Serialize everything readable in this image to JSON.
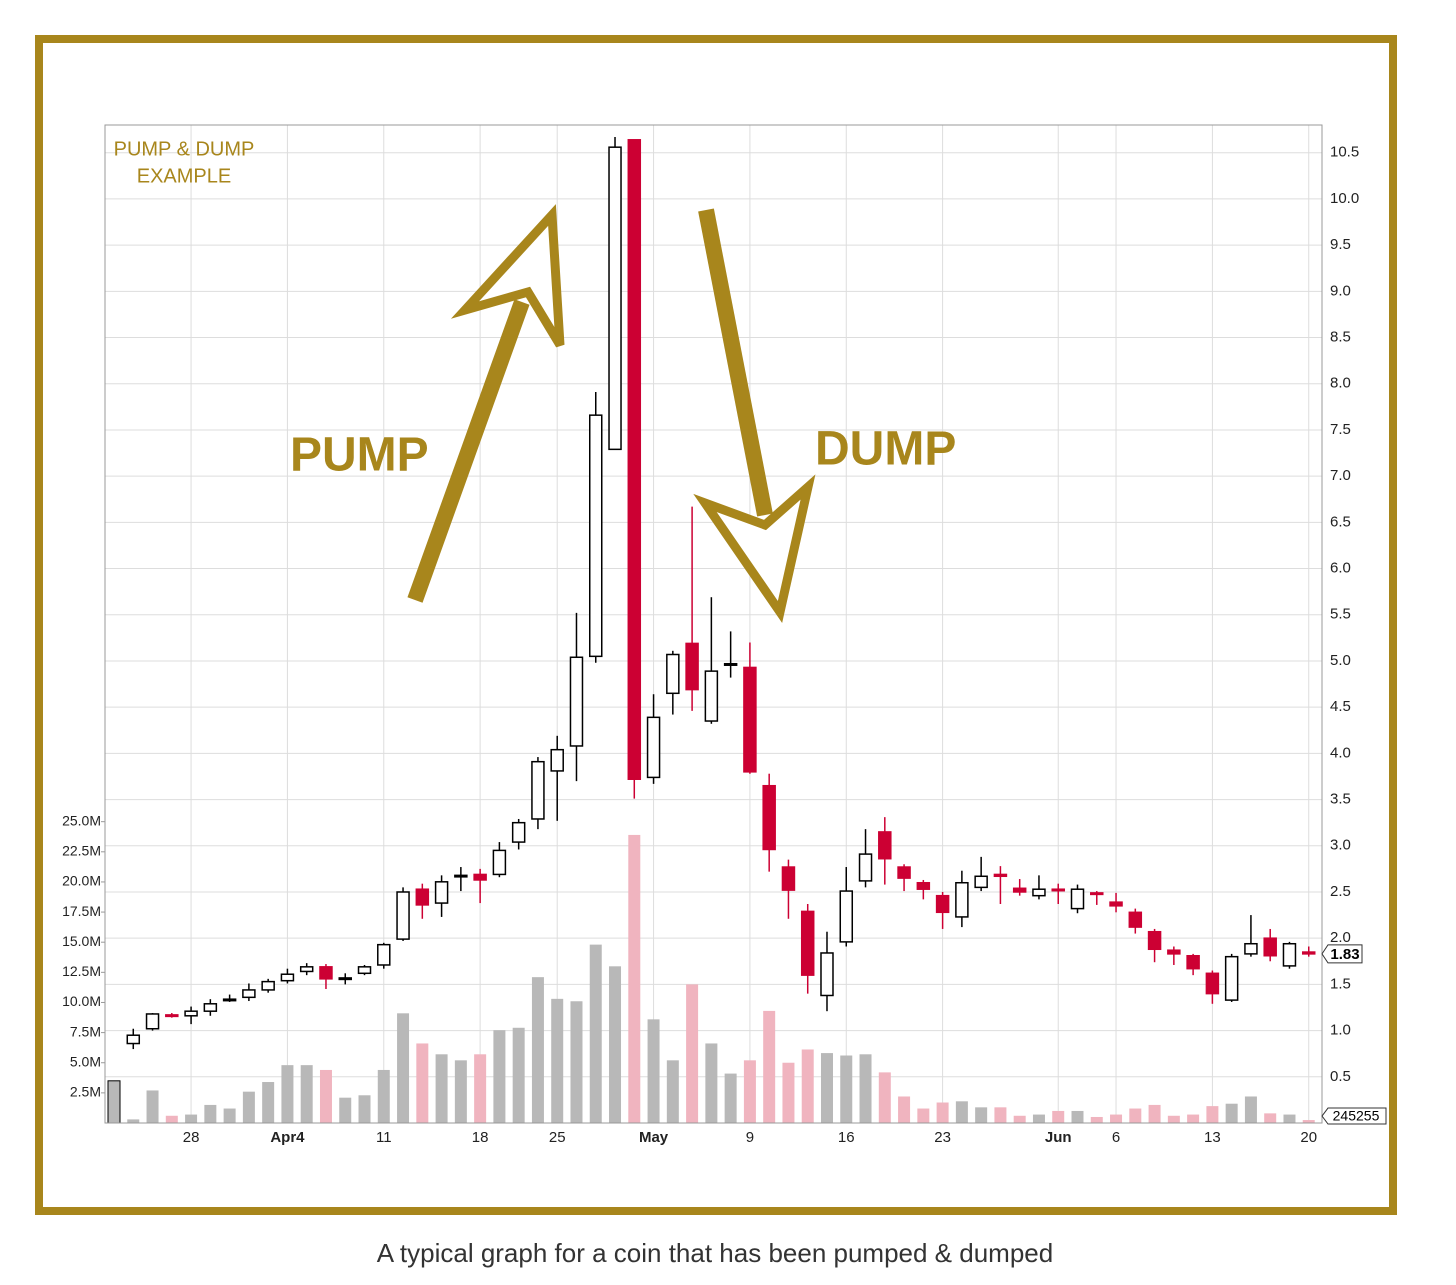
{
  "chart_data": {
    "type": "candlestick",
    "title_lines": [
      "PUMP & DUMP",
      "EXAMPLE"
    ],
    "annotations": [
      "PUMP",
      "DUMP"
    ],
    "categories": [
      null,
      null,
      null,
      null,
      "28",
      null,
      null,
      null,
      null,
      "Apr4",
      null,
      null,
      null,
      null,
      "11",
      null,
      null,
      null,
      null,
      "18",
      null,
      null,
      null,
      "25",
      null,
      null,
      null,
      null,
      "May",
      null,
      null,
      null,
      null,
      "9",
      null,
      null,
      null,
      null,
      "16",
      null,
      null,
      null,
      null,
      "23",
      null,
      null,
      null,
      null,
      null,
      "Jun",
      null,
      null,
      "6",
      null,
      null,
      null,
      null,
      "13",
      null,
      null,
      null,
      null,
      "20"
    ],
    "open": [
      null,
      0.86,
      1.02,
      1.17,
      1.16,
      1.21,
      1.33,
      1.36,
      1.44,
      1.54,
      1.64,
      1.69,
      1.56,
      1.62,
      1.71,
      1.99,
      2.53,
      2.38,
      2.67,
      2.69,
      2.69,
      3.04,
      3.29,
      3.81,
      4.08,
      5.05,
      7.29,
      10.64,
      3.74,
      4.65,
      5.19,
      4.35,
      4.96,
      4.93,
      3.65,
      2.77,
      2.29,
      1.38,
      1.96,
      2.62,
      3.15,
      2.77,
      2.6,
      2.46,
      2.23,
      2.55,
      2.69,
      2.54,
      2.46,
      2.53,
      2.32,
      2.49,
      2.39,
      2.28,
      2.07,
      1.87,
      1.81,
      1.62,
      1.33,
      1.83,
      2.0,
      1.7,
      1.85
    ],
    "high": [
      null,
      1.02,
      1.19,
      1.19,
      1.26,
      1.34,
      1.39,
      1.51,
      1.56,
      1.67,
      1.73,
      1.72,
      1.62,
      1.71,
      1.95,
      2.55,
      2.59,
      2.68,
      2.77,
      2.75,
      3.04,
      3.29,
      3.96,
      4.19,
      5.52,
      7.91,
      10.67,
      10.64,
      4.64,
      5.11,
      6.67,
      5.69,
      5.32,
      5.2,
      3.78,
      2.85,
      2.37,
      2.07,
      2.77,
      3.18,
      3.31,
      2.8,
      2.63,
      2.5,
      2.73,
      2.88,
      2.78,
      2.64,
      2.68,
      2.59,
      2.58,
      2.51,
      2.49,
      2.32,
      2.1,
      1.91,
      1.83,
      1.65,
      1.83,
      2.25,
      2.1,
      1.96,
      1.91
    ],
    "low": [
      null,
      0.8,
      1.0,
      1.14,
      1.07,
      1.16,
      1.31,
      1.32,
      1.41,
      1.51,
      1.6,
      1.45,
      1.5,
      1.6,
      1.67,
      1.97,
      2.21,
      2.23,
      2.51,
      2.38,
      2.66,
      2.96,
      3.18,
      3.27,
      3.7,
      4.98,
      7.29,
      3.51,
      3.67,
      4.42,
      4.46,
      4.32,
      4.82,
      3.78,
      2.72,
      2.21,
      1.4,
      1.21,
      1.91,
      2.55,
      2.58,
      2.51,
      2.42,
      2.1,
      2.12,
      2.51,
      2.37,
      2.46,
      2.42,
      2.37,
      2.27,
      2.36,
      2.28,
      2.05,
      1.74,
      1.71,
      1.6,
      1.29,
      1.31,
      1.8,
      1.75,
      1.67,
      1.8
    ],
    "close": [
      null,
      0.95,
      1.18,
      1.16,
      1.21,
      1.29,
      1.34,
      1.44,
      1.53,
      1.61,
      1.69,
      1.56,
      1.57,
      1.69,
      1.93,
      2.5,
      2.36,
      2.61,
      2.68,
      2.63,
      2.95,
      3.25,
      3.91,
      4.04,
      5.04,
      7.66,
      10.56,
      3.72,
      4.39,
      5.07,
      4.69,
      4.89,
      4.97,
      3.8,
      2.96,
      2.52,
      1.6,
      1.84,
      2.51,
      2.91,
      2.86,
      2.65,
      2.53,
      2.28,
      2.6,
      2.67,
      2.67,
      2.5,
      2.53,
      2.52,
      2.53,
      2.48,
      2.35,
      2.12,
      1.88,
      1.83,
      1.67,
      1.4,
      1.8,
      1.94,
      1.81,
      1.94,
      1.83
    ],
    "volume": [
      3.5,
      0.3,
      2.7,
      0.6,
      0.7,
      1.5,
      1.2,
      2.6,
      3.4,
      4.8,
      4.8,
      4.4,
      2.1,
      2.3,
      4.4,
      9.1,
      6.6,
      5.7,
      5.2,
      5.7,
      7.7,
      7.9,
      12.1,
      10.3,
      10.1,
      14.8,
      13.0,
      23.9,
      8.6,
      5.2,
      11.5,
      6.6,
      4.1,
      5.2,
      9.3,
      5.0,
      6.1,
      5.8,
      5.6,
      5.7,
      4.2,
      2.2,
      1.2,
      1.7,
      1.8,
      1.3,
      1.3,
      0.6,
      0.7,
      1.0,
      1.0,
      0.5,
      0.7,
      1.2,
      1.5,
      0.6,
      0.7,
      1.4,
      1.6,
      2.2,
      0.8,
      0.7,
      0.245255
    ],
    "volume_last_label": "245255",
    "up_color": "#ffffff",
    "down_color": "#cc0033",
    "volume_up_color": "#b8b8b8",
    "volume_down_color": "#f0b4bf",
    "ylim": [
      0,
      10.8
    ],
    "yticks": [
      0.5,
      {
        "value": 1,
        "label": "1.0"
      },
      1.5,
      {
        "value": 2,
        "label": "2.0"
      },
      2.5,
      {
        "value": 3,
        "label": "3.0"
      },
      3.5,
      {
        "value": 4,
        "label": "4.0"
      },
      4.5,
      {
        "value": 5,
        "label": "5.0"
      },
      5.5,
      {
        "value": 6,
        "label": "6.0"
      },
      6.5,
      {
        "value": 7,
        "label": "7.0"
      },
      7.5,
      {
        "value": 8,
        "label": "8.0"
      },
      8.5,
      {
        "value": 9,
        "label": "9.0"
      },
      9.5,
      {
        "value": 10,
        "label": "10.0"
      },
      10.5
    ],
    "volume_lim": [
      0,
      82.8
    ],
    "volume_ticks": [
      {
        "value": 2.5,
        "label": "2.5M"
      },
      {
        "value": 5,
        "label": "5.0M"
      },
      {
        "value": 7.5,
        "label": "7.5M"
      },
      {
        "value": 10,
        "label": "10.0M"
      },
      {
        "value": 12.5,
        "label": "12.5M"
      },
      {
        "value": 15,
        "label": "15.0M"
      },
      {
        "value": 17.5,
        "label": "17.5M"
      },
      {
        "value": 20,
        "label": "20.0M"
      },
      {
        "value": 22.5,
        "label": "22.5M"
      },
      {
        "value": 25,
        "label": "25.0M"
      }
    ],
    "grid": true
  },
  "caption": "A typical graph for a coin that has been pumped & dumped"
}
